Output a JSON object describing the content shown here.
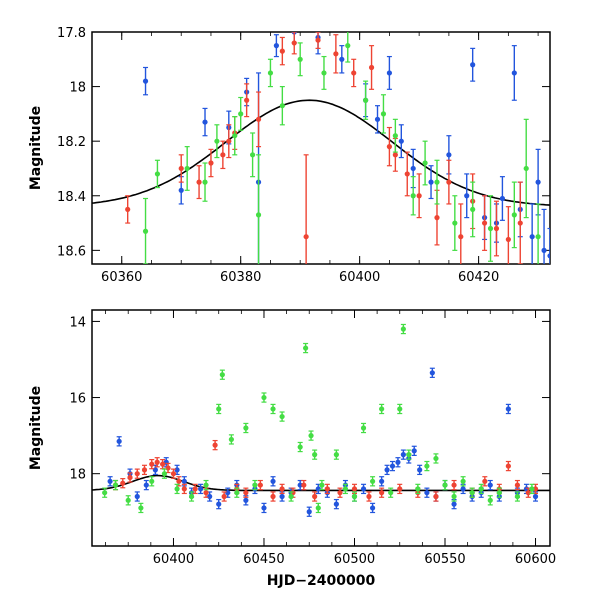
{
  "chart_data": [
    {
      "type": "scatter",
      "panel": "top",
      "xlabel": "",
      "ylabel": "Magnitude",
      "xlim": [
        60355,
        60432
      ],
      "ylim": [
        18.65,
        17.8
      ],
      "y_inverted": true,
      "x_ticks": [
        60360,
        60380,
        60400,
        60420
      ],
      "x_tick_labels": [
        "60360",
        "60380",
        "60400",
        "60420"
      ],
      "y_ticks": [
        17.8,
        18,
        18.2,
        18.4,
        18.6
      ],
      "y_tick_labels": [
        "17.8",
        "18",
        "18.2",
        "18.4",
        "18.6"
      ],
      "grid": false,
      "series": [
        {
          "color": "#2255dd",
          "points": [
            [
              60364,
              17.98,
              0.05
            ],
            [
              60370,
              18.38,
              0.05
            ],
            [
              60374,
              18.13,
              0.05
            ],
            [
              60378,
              18.15,
              0.06
            ],
            [
              60381,
              18.02,
              0.05
            ],
            [
              60383,
              18.35,
              0.4
            ],
            [
              60386,
              17.85,
              0.04
            ],
            [
              60389,
              17.8,
              0.04
            ],
            [
              60393,
              17.82,
              0.06
            ],
            [
              60397,
              17.9,
              0.05
            ],
            [
              60401,
              18.05,
              0.06
            ],
            [
              60403,
              18.12,
              0.05
            ],
            [
              60405,
              17.95,
              0.06
            ],
            [
              60407,
              18.2,
              0.06
            ],
            [
              60409,
              18.3,
              0.07
            ],
            [
              60412,
              18.35,
              0.06
            ],
            [
              60415,
              18.25,
              0.07
            ],
            [
              60418,
              18.4,
              0.08
            ],
            [
              60419,
              17.92,
              0.06
            ],
            [
              60421,
              18.48,
              0.08
            ],
            [
              60423,
              18.5,
              0.07
            ],
            [
              60424,
              18.41,
              0.08
            ],
            [
              60426,
              17.95,
              0.1
            ],
            [
              60427,
              18.45,
              0.1
            ],
            [
              60429,
              18.55,
              0.12
            ],
            [
              60430,
              18.35,
              0.12
            ],
            [
              60431,
              18.6,
              0.15
            ],
            [
              60432,
              18.62,
              0.1
            ]
          ]
        },
        {
          "color": "#ee4433",
          "points": [
            [
              60361,
              18.45,
              0.05
            ],
            [
              60370,
              18.3,
              0.05
            ],
            [
              60373,
              18.35,
              0.06
            ],
            [
              60375,
              18.28,
              0.05
            ],
            [
              60377,
              18.25,
              0.05
            ],
            [
              60378,
              18.2,
              0.06
            ],
            [
              60379,
              18.17,
              0.06
            ],
            [
              60381,
              18.05,
              0.06
            ],
            [
              60383,
              18.12,
              0.1
            ],
            [
              60387,
              17.87,
              0.05
            ],
            [
              60389,
              17.84,
              0.04
            ],
            [
              60391,
              18.55,
              0.3
            ],
            [
              60393,
              17.83,
              0.03
            ],
            [
              60396,
              17.88,
              0.07
            ],
            [
              60399,
              17.95,
              0.05
            ],
            [
              60402,
              17.93,
              0.08
            ],
            [
              60405,
              18.22,
              0.07
            ],
            [
              60406,
              18.25,
              0.06
            ],
            [
              60408,
              18.32,
              0.08
            ],
            [
              60410,
              18.4,
              0.08
            ],
            [
              60413,
              18.48,
              0.1
            ],
            [
              60415,
              18.35,
              0.08
            ],
            [
              60417,
              18.55,
              0.12
            ],
            [
              60419,
              18.42,
              0.1
            ],
            [
              60421,
              18.5,
              0.1
            ],
            [
              60423,
              18.52,
              0.1
            ],
            [
              60425,
              18.56,
              0.12
            ],
            [
              60427,
              18.5,
              0.15
            ]
          ]
        },
        {
          "color": "#44dd44",
          "points": [
            [
              60364,
              18.53,
              0.12
            ],
            [
              60366,
              18.32,
              0.05
            ],
            [
              60371,
              18.3,
              0.08
            ],
            [
              60374,
              18.35,
              0.07
            ],
            [
              60376,
              18.2,
              0.06
            ],
            [
              60379,
              18.18,
              0.07
            ],
            [
              60380,
              18.1,
              0.06
            ],
            [
              60382,
              18.25,
              0.08
            ],
            [
              60383,
              18.47,
              0.22
            ],
            [
              60385,
              17.95,
              0.05
            ],
            [
              60387,
              18.07,
              0.07
            ],
            [
              60390,
              17.9,
              0.06
            ],
            [
              60394,
              17.95,
              0.06
            ],
            [
              60398,
              17.85,
              0.06
            ],
            [
              60401,
              18.05,
              0.07
            ],
            [
              60404,
              18.1,
              0.07
            ],
            [
              60406,
              18.18,
              0.06
            ],
            [
              60409,
              18.4,
              0.07
            ],
            [
              60411,
              18.28,
              0.08
            ],
            [
              60413,
              18.35,
              0.08
            ],
            [
              60416,
              18.5,
              0.1
            ],
            [
              60419,
              18.45,
              0.1
            ],
            [
              60422,
              18.52,
              0.12
            ],
            [
              60426,
              18.47,
              0.12
            ],
            [
              60428,
              18.3,
              0.18
            ],
            [
              60430,
              18.55,
              0.12
            ]
          ]
        }
      ],
      "model_curve": {
        "color": "#000000",
        "peak_x": 60391.5,
        "peak_mag": 18.05,
        "base_mag": 18.44,
        "sigma": 14
      }
    },
    {
      "type": "scatter",
      "panel": "bottom",
      "xlabel": "HJD−2400000",
      "ylabel": "Magnitude",
      "xlim": [
        60355,
        60608
      ],
      "ylim": [
        19.9,
        13.7
      ],
      "y_inverted": true,
      "x_ticks": [
        60400,
        60450,
        60500,
        60550,
        60600
      ],
      "x_tick_labels": [
        "60400",
        "60450",
        "60500",
        "60550",
        "60600"
      ],
      "y_ticks": [
        14,
        16,
        18
      ],
      "y_tick_labels": [
        "14",
        "16",
        "18"
      ],
      "grid": false,
      "series": [
        {
          "color": "#2255dd",
          "points": [
            [
              60365,
              18.2
            ],
            [
              60370,
              17.15
            ],
            [
              60376,
              18.0
            ],
            [
              60380,
              18.6
            ],
            [
              60385,
              18.3
            ],
            [
              60390,
              17.9
            ],
            [
              60396,
              17.7
            ],
            [
              60402,
              17.9
            ],
            [
              60406,
              18.2
            ],
            [
              60410,
              18.5
            ],
            [
              60415,
              18.4
            ],
            [
              60420,
              18.6
            ],
            [
              60425,
              18.8
            ],
            [
              60430,
              18.5
            ],
            [
              60435,
              18.3
            ],
            [
              60440,
              18.7
            ],
            [
              60445,
              18.4
            ],
            [
              60450,
              18.9
            ],
            [
              60455,
              18.2
            ],
            [
              60460,
              18.6
            ],
            [
              60465,
              18.5
            ],
            [
              60470,
              18.3
            ],
            [
              60475,
              19.0
            ],
            [
              60480,
              18.4
            ],
            [
              60485,
              18.5
            ],
            [
              60490,
              18.8
            ],
            [
              60495,
              18.3
            ],
            [
              60500,
              18.6
            ],
            [
              60505,
              18.4
            ],
            [
              60510,
              18.9
            ],
            [
              60515,
              18.2
            ],
            [
              60518,
              17.9
            ],
            [
              60521,
              17.8
            ],
            [
              60524,
              17.7
            ],
            [
              60527,
              17.5
            ],
            [
              60530,
              17.6
            ],
            [
              60533,
              17.4
            ],
            [
              60536,
              17.9
            ],
            [
              60540,
              18.5
            ],
            [
              60543,
              15.35
            ],
            [
              60545,
              18.6
            ],
            [
              60550,
              18.3
            ],
            [
              60555,
              18.8
            ],
            [
              60560,
              18.4
            ],
            [
              60565,
              18.6
            ],
            [
              60570,
              18.5
            ],
            [
              60575,
              18.3
            ],
            [
              60580,
              18.6
            ],
            [
              60585,
              16.3
            ],
            [
              60590,
              18.5
            ],
            [
              60595,
              18.4
            ],
            [
              60600,
              18.6
            ]
          ]
        },
        {
          "color": "#ee4433",
          "points": [
            [
              60368,
              18.3
            ],
            [
              60372,
              18.25
            ],
            [
              60376,
              18.1
            ],
            [
              60380,
              18.0
            ],
            [
              60384,
              17.9
            ],
            [
              60388,
              17.75
            ],
            [
              60391,
              17.7
            ],
            [
              60394,
              17.75
            ],
            [
              60397,
              17.85
            ],
            [
              60400,
              18.0
            ],
            [
              60403,
              18.2
            ],
            [
              60406,
              18.4
            ],
            [
              60412,
              18.4
            ],
            [
              60418,
              18.5
            ],
            [
              60423,
              17.25
            ],
            [
              60428,
              18.6
            ],
            [
              60435,
              18.4
            ],
            [
              60440,
              18.5
            ],
            [
              60448,
              18.3
            ],
            [
              60455,
              18.6
            ],
            [
              60460,
              18.4
            ],
            [
              60466,
              18.5
            ],
            [
              60472,
              18.3
            ],
            [
              60478,
              18.6
            ],
            [
              60485,
              18.4
            ],
            [
              60492,
              18.5
            ],
            [
              60500,
              18.4
            ],
            [
              60508,
              18.6
            ],
            [
              60515,
              18.5
            ],
            [
              60525,
              18.4
            ],
            [
              60535,
              18.5
            ],
            [
              60545,
              18.6
            ],
            [
              60555,
              18.3
            ],
            [
              60565,
              18.5
            ],
            [
              60572,
              18.2
            ],
            [
              60580,
              18.4
            ],
            [
              60585,
              17.8
            ],
            [
              60590,
              18.3
            ],
            [
              60596,
              18.5
            ],
            [
              60600,
              18.4
            ]
          ]
        },
        {
          "color": "#44dd44",
          "points": [
            [
              60362,
              18.5
            ],
            [
              60368,
              18.3
            ],
            [
              60375,
              18.7
            ],
            [
              60382,
              18.9
            ],
            [
              60388,
              18.2
            ],
            [
              60395,
              18.0
            ],
            [
              60402,
              18.4
            ],
            [
              60410,
              18.6
            ],
            [
              60418,
              18.3
            ],
            [
              60425,
              16.3
            ],
            [
              60427,
              15.4
            ],
            [
              60432,
              17.1
            ],
            [
              60435,
              18.5
            ],
            [
              60440,
              16.8
            ],
            [
              60445,
              18.3
            ],
            [
              60450,
              16.0
            ],
            [
              60455,
              16.3
            ],
            [
              60460,
              16.5
            ],
            [
              60465,
              18.6
            ],
            [
              60470,
              17.3
            ],
            [
              60473,
              14.7
            ],
            [
              60476,
              17.0
            ],
            [
              60478,
              17.5
            ],
            [
              60480,
              18.9
            ],
            [
              60482,
              18.3
            ],
            [
              60490,
              17.5
            ],
            [
              60495,
              18.4
            ],
            [
              60500,
              18.6
            ],
            [
              60505,
              16.8
            ],
            [
              60510,
              18.2
            ],
            [
              60515,
              16.3
            ],
            [
              60520,
              18.5
            ],
            [
              60525,
              16.3
            ],
            [
              60527,
              14.2
            ],
            [
              60530,
              17.5
            ],
            [
              60535,
              18.4
            ],
            [
              60540,
              17.8
            ],
            [
              60545,
              17.6
            ],
            [
              60550,
              18.3
            ],
            [
              60555,
              18.6
            ],
            [
              60560,
              18.2
            ],
            [
              60565,
              18.5
            ],
            [
              60570,
              18.4
            ],
            [
              60575,
              18.7
            ],
            [
              60580,
              18.5
            ],
            [
              60590,
              18.6
            ],
            [
              60598,
              18.4
            ]
          ]
        }
      ],
      "model_curve": {
        "color": "#000000",
        "peak_x": 60391.5,
        "peak_mag": 18.05,
        "base_mag": 18.44,
        "sigma": 14
      }
    }
  ]
}
